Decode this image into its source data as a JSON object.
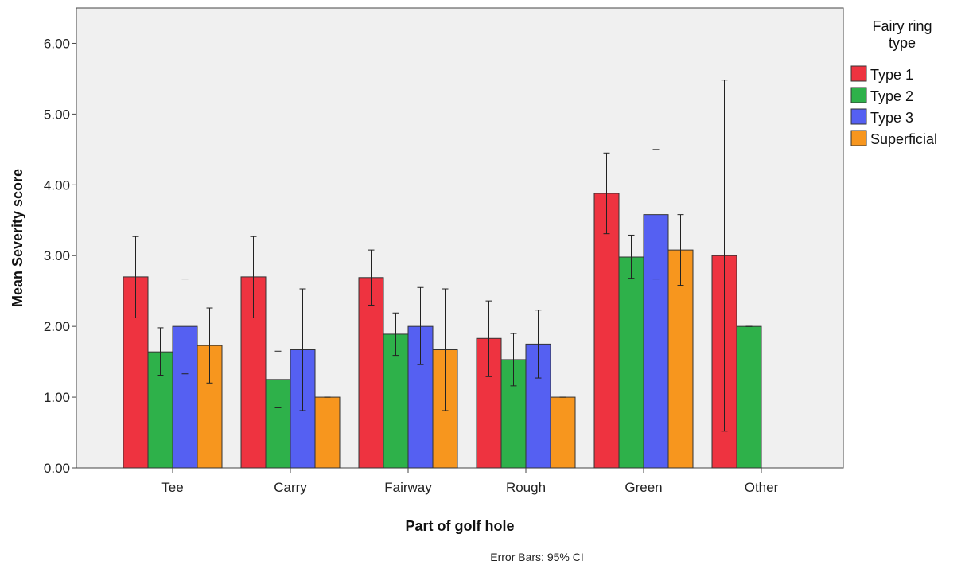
{
  "chart_data": {
    "type": "bar",
    "xlabel": "Part of golf hole",
    "ylabel": "Mean Severity score",
    "ylim": [
      0,
      6.5
    ],
    "yticks": [
      "0.00",
      "1.00",
      "2.00",
      "3.00",
      "4.00",
      "5.00",
      "6.00"
    ],
    "categories": [
      "Tee",
      "Carry",
      "Fairway",
      "Rough",
      "Green",
      "Other"
    ],
    "legend": {
      "title_lines": [
        "Fairy ring",
        "type"
      ],
      "placement": "right"
    },
    "series": [
      {
        "name": "Type 1",
        "color": "#ee3340",
        "values": [
          2.7,
          2.7,
          2.69,
          1.83,
          3.88,
          3.0
        ],
        "ci_low": [
          2.12,
          2.12,
          2.3,
          1.29,
          3.31,
          0.52
        ],
        "ci_high": [
          3.27,
          3.27,
          3.08,
          2.36,
          4.45,
          5.48
        ]
      },
      {
        "name": "Type 2",
        "color": "#2eb14a",
        "values": [
          1.64,
          1.25,
          1.89,
          1.53,
          2.98,
          2.0
        ],
        "ci_low": [
          1.31,
          0.85,
          1.59,
          1.16,
          2.68,
          2.0
        ],
        "ci_high": [
          1.98,
          1.65,
          2.19,
          1.9,
          3.29,
          2.0
        ]
      },
      {
        "name": "Type 3",
        "color": "#5560f2",
        "values": [
          2.0,
          1.67,
          2.0,
          1.75,
          3.58,
          null
        ],
        "ci_low": [
          1.33,
          0.81,
          1.46,
          1.27,
          2.67,
          null
        ],
        "ci_high": [
          2.67,
          2.53,
          2.55,
          2.23,
          4.5,
          null
        ]
      },
      {
        "name": "Superficial",
        "color": "#f7961e",
        "values": [
          1.73,
          1.0,
          1.67,
          1.0,
          3.08,
          null
        ],
        "ci_low": [
          1.2,
          1.0,
          0.81,
          1.0,
          2.58,
          null
        ],
        "ci_high": [
          2.26,
          1.0,
          2.53,
          1.0,
          3.58,
          null
        ]
      }
    ],
    "grid": false,
    "plot_background": "#f0f0f0",
    "note": "Error Bars: 95% CI"
  }
}
